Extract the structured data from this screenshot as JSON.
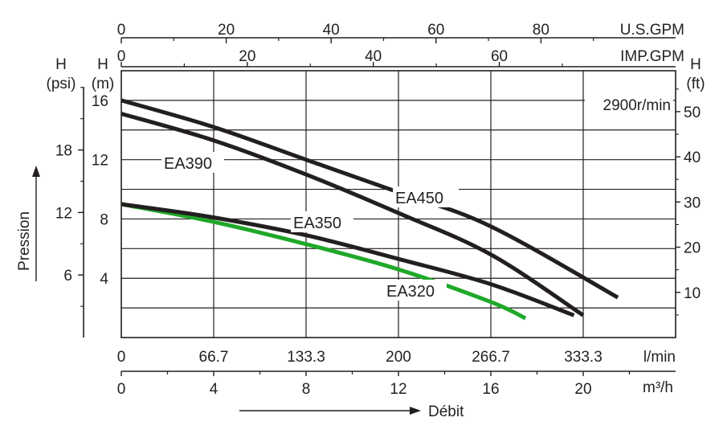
{
  "chart_data": {
    "type": "line",
    "speed_note": "2900r/min",
    "x_flow": {
      "units_lmin": "l/min",
      "units_m3h": "m³/h",
      "ticks_lmin": [
        "0",
        "66.7",
        "133.3",
        "200",
        "266.7",
        "333.3"
      ],
      "ticks_m3h": [
        "0",
        "4",
        "8",
        "12",
        "16",
        "20"
      ],
      "xlim_m3h": [
        0,
        24
      ]
    },
    "x_top": {
      "units_usgpm": "U.S.GPM",
      "units_impgpm": "IMP.GPM",
      "ticks_usgpm": [
        "0",
        "20",
        "40",
        "60",
        "80"
      ],
      "ticks_impgpm": [
        "0",
        "20",
        "40",
        "60"
      ]
    },
    "y_head_m": {
      "label_line1": "H",
      "label_line2": "(m)",
      "ticks": [
        "4",
        "8",
        "12",
        "16"
      ],
      "ylim": [
        0,
        18
      ]
    },
    "y_head_psi": {
      "label_line1": "H",
      "label_line2": "(psi)",
      "ticks": [
        "6",
        "12",
        "18"
      ]
    },
    "y_head_ft": {
      "label_line1": "H",
      "label_line2": "(ft)",
      "ticks": [
        "10",
        "20",
        "30",
        "40",
        "50"
      ]
    },
    "axis_titles": {
      "pressure": "Pression",
      "flow": "Débit"
    },
    "series": [
      {
        "name": "EA450",
        "color": "#231f20",
        "x_m3h": [
          0,
          4,
          8,
          12,
          16,
          21.5
        ],
        "y_m": [
          16.0,
          14.2,
          12.0,
          9.8,
          7.5,
          2.7
        ]
      },
      {
        "name": "EA390",
        "color": "#231f20",
        "x_m3h": [
          0,
          4,
          8,
          12,
          16,
          20
        ],
        "y_m": [
          15.1,
          13.3,
          11.0,
          8.4,
          5.6,
          1.5
        ]
      },
      {
        "name": "EA350",
        "color": "#231f20",
        "x_m3h": [
          0,
          4,
          8,
          12,
          16,
          19.6
        ],
        "y_m": [
          9.0,
          8.1,
          6.9,
          5.3,
          3.6,
          1.5
        ]
      },
      {
        "name": "EA320",
        "color": "#1fa829",
        "x_m3h": [
          0,
          4,
          8,
          12,
          16,
          17.5
        ],
        "y_m": [
          9.0,
          7.8,
          6.3,
          4.6,
          2.4,
          1.3
        ]
      }
    ]
  }
}
